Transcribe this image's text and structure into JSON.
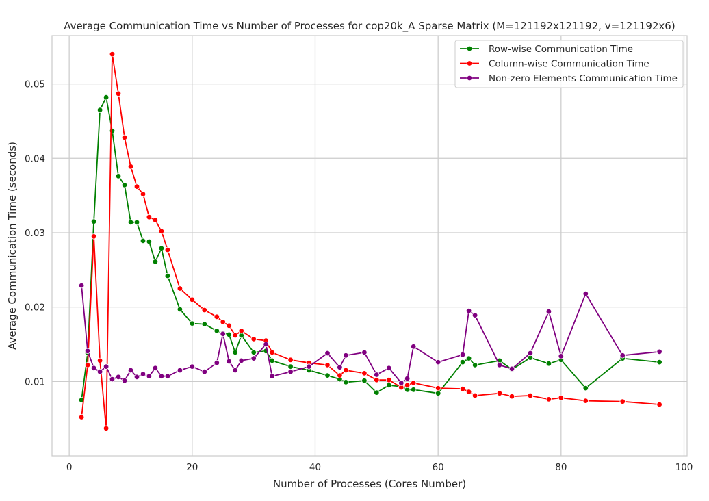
{
  "chart_data": {
    "type": "line",
    "title": "Average Communication Time vs Number of Processes for cop20k_A Sparse Matrix (M=121192x121192, v=121192x6)",
    "xlabel": "Number of Processes (Cores Number)",
    "ylabel": "Average Communication Time (seconds)",
    "xlim": [
      -2.8,
      100.5
    ],
    "ylim": [
      0,
      0.0565
    ],
    "xticks": [
      0,
      20,
      40,
      60,
      80,
      100
    ],
    "xtick_labels": [
      "0",
      "20",
      "40",
      "60",
      "80",
      "100"
    ],
    "yticks": [
      0.01,
      0.02,
      0.03,
      0.04,
      0.05
    ],
    "ytick_labels": [
      "0.01",
      "0.02",
      "0.03",
      "0.04",
      "0.05"
    ],
    "grid": true,
    "legend_position": "top-right",
    "series": [
      {
        "name": "Row-wise Communication Time",
        "color": "#008000",
        "x": [
          2,
          3,
          4,
          5,
          6,
          7,
          8,
          9,
          10,
          11,
          12,
          13,
          14,
          15,
          16,
          18,
          20,
          22,
          24,
          25,
          26,
          27,
          28,
          30,
          32,
          33,
          36,
          39,
          42,
          44,
          45,
          48,
          50,
          52,
          54,
          55,
          56,
          60,
          64,
          65,
          66,
          70,
          72,
          75,
          78,
          80,
          84,
          90,
          96
        ],
        "y": [
          0.0075,
          0.0138,
          0.0315,
          0.0465,
          0.0482,
          0.0437,
          0.0376,
          0.0364,
          0.0314,
          0.0314,
          0.0289,
          0.0288,
          0.0261,
          0.0279,
          0.0242,
          0.0197,
          0.0178,
          0.0177,
          0.0168,
          0.0165,
          0.0163,
          0.0139,
          0.0162,
          0.0139,
          0.0141,
          0.0128,
          0.012,
          0.0115,
          0.0108,
          0.0103,
          0.0099,
          0.0101,
          0.0085,
          0.0095,
          0.0093,
          0.0089,
          0.0089,
          0.0084,
          0.0126,
          0.0131,
          0.0122,
          0.0128,
          0.0116,
          0.0132,
          0.0124,
          0.0129,
          0.0091,
          0.0131,
          0.0126
        ]
      },
      {
        "name": "Column-wise Communication Time",
        "color": "#ff0000",
        "x": [
          2,
          3,
          4,
          5,
          6,
          7,
          8,
          9,
          10,
          11,
          12,
          13,
          14,
          15,
          16,
          18,
          20,
          22,
          24,
          25,
          26,
          27,
          28,
          30,
          32,
          33,
          36,
          39,
          42,
          44,
          45,
          48,
          50,
          52,
          54,
          55,
          56,
          60,
          64,
          65,
          66,
          70,
          72,
          75,
          78,
          80,
          84,
          90,
          96
        ],
        "y": [
          0.0052,
          0.0122,
          0.0295,
          0.0128,
          0.0037,
          0.054,
          0.0487,
          0.0428,
          0.0389,
          0.0362,
          0.0352,
          0.0321,
          0.0317,
          0.0302,
          0.0277,
          0.0225,
          0.021,
          0.0196,
          0.0187,
          0.018,
          0.0175,
          0.0162,
          0.0168,
          0.0157,
          0.0155,
          0.0139,
          0.0129,
          0.0125,
          0.0122,
          0.0108,
          0.0115,
          0.0111,
          0.0102,
          0.0102,
          0.0092,
          0.0095,
          0.0098,
          0.0091,
          0.009,
          0.0086,
          0.0081,
          0.0084,
          0.008,
          0.0081,
          0.0076,
          0.0078,
          0.0074,
          0.0073,
          0.0069
        ]
      },
      {
        "name": "Non-zero Elements Communication Time",
        "color": "#800080",
        "x": [
          2,
          3,
          4,
          5,
          6,
          7,
          8,
          9,
          10,
          11,
          12,
          13,
          14,
          15,
          16,
          18,
          20,
          22,
          24,
          25,
          26,
          27,
          28,
          30,
          32,
          33,
          36,
          39,
          42,
          44,
          45,
          48,
          50,
          52,
          54,
          55,
          56,
          60,
          64,
          65,
          66,
          70,
          72,
          75,
          78,
          80,
          84,
          90,
          96
        ],
        "y": [
          0.0229,
          0.0141,
          0.0118,
          0.0113,
          0.012,
          0.0103,
          0.0106,
          0.0101,
          0.0115,
          0.0106,
          0.011,
          0.0107,
          0.0118,
          0.0107,
          0.0107,
          0.0115,
          0.012,
          0.0113,
          0.0125,
          0.0164,
          0.0127,
          0.0115,
          0.0128,
          0.0131,
          0.015,
          0.0107,
          0.0113,
          0.012,
          0.0138,
          0.0119,
          0.0135,
          0.0139,
          0.0109,
          0.0118,
          0.0098,
          0.0104,
          0.0147,
          0.0126,
          0.0136,
          0.0195,
          0.0189,
          0.0122,
          0.0117,
          0.0138,
          0.0194,
          0.0134,
          0.0218,
          0.0135,
          0.014
        ]
      }
    ]
  }
}
